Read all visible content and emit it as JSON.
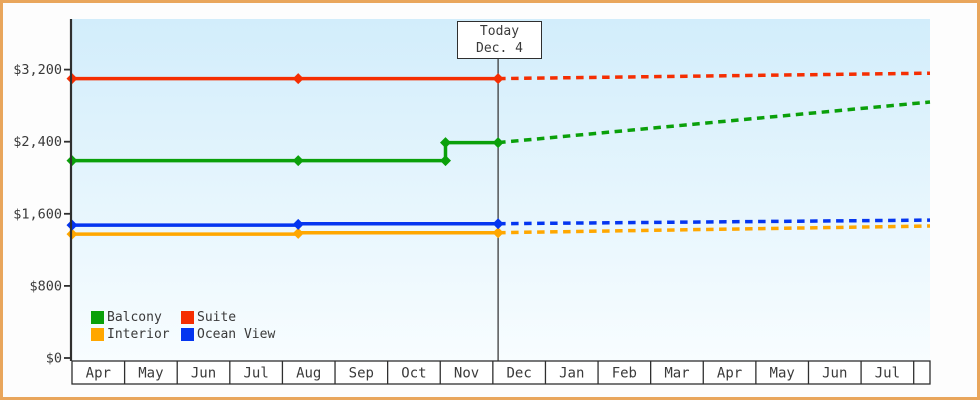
{
  "colors": {
    "frame_border": "#e9a65c",
    "axis": "#2f2f2f",
    "text": "#3a3a3a",
    "today_line": "#3c3c3c",
    "plot_bg_top": "#d2edfb",
    "plot_bg_bottom": "#f8fdff",
    "cell_bg": "#ffffff"
  },
  "chart_data": {
    "type": "line",
    "title": "",
    "xlabel": "",
    "ylabel": "",
    "xlim": [
      0,
      16.31
    ],
    "ylim": [
      0,
      3760
    ],
    "grid": false,
    "legend_position": "bottom-left",
    "x_axis": {
      "unit": "month",
      "tick_labels": [
        "Apr",
        "May",
        "Jun",
        "Jul",
        "Aug",
        "Sep",
        "Oct",
        "Nov",
        "Dec",
        "Jan",
        "Feb",
        "Mar",
        "Apr",
        "May",
        "Jun",
        "Jul"
      ]
    },
    "y_axis": {
      "tick_values": [
        0,
        800,
        1600,
        2400,
        3200
      ],
      "tick_labels": [
        "$0",
        "$800",
        "$1,600",
        "$2,400",
        "$3,200"
      ]
    },
    "today": {
      "line1": "Today",
      "line2": "Dec. 4",
      "x": 8.1
    },
    "series": [
      {
        "name": "Balcony",
        "color": "#0aa00a",
        "history": [
          [
            0,
            2190
          ],
          [
            4.3,
            2190
          ],
          [
            7.1,
            2190
          ],
          [
            7.1,
            2390
          ],
          [
            8.1,
            2390
          ]
        ],
        "forecast": [
          [
            8.1,
            2390
          ],
          [
            16.31,
            2840
          ]
        ],
        "marker_points": [
          [
            0,
            2190
          ],
          [
            4.3,
            2190
          ],
          [
            7.1,
            2190
          ],
          [
            7.1,
            2390
          ],
          [
            8.1,
            2390
          ]
        ]
      },
      {
        "name": "Suite",
        "color": "#f52e02",
        "history": [
          [
            0,
            3100
          ],
          [
            4.3,
            3100
          ],
          [
            8.1,
            3100
          ]
        ],
        "forecast": [
          [
            8.1,
            3100
          ],
          [
            16.31,
            3160
          ]
        ],
        "marker_points": [
          [
            0,
            3100
          ],
          [
            4.3,
            3100
          ],
          [
            8.1,
            3100
          ]
        ]
      },
      {
        "name": "Interior",
        "color": "#ffa700",
        "history": [
          [
            0,
            1375
          ],
          [
            4.3,
            1375
          ],
          [
            4.3,
            1390
          ],
          [
            8.1,
            1390
          ]
        ],
        "forecast": [
          [
            8.1,
            1390
          ],
          [
            16.31,
            1465
          ]
        ],
        "marker_points": [
          [
            0,
            1375
          ],
          [
            4.3,
            1383
          ],
          [
            8.1,
            1390
          ]
        ]
      },
      {
        "name": "Ocean View",
        "color": "#0435f0",
        "history": [
          [
            0,
            1475
          ],
          [
            4.3,
            1475
          ],
          [
            4.3,
            1490
          ],
          [
            8.1,
            1490
          ]
        ],
        "forecast": [
          [
            8.1,
            1490
          ],
          [
            16.31,
            1530
          ]
        ],
        "marker_points": [
          [
            0,
            1475
          ],
          [
            4.3,
            1483
          ],
          [
            8.1,
            1490
          ]
        ]
      }
    ]
  }
}
